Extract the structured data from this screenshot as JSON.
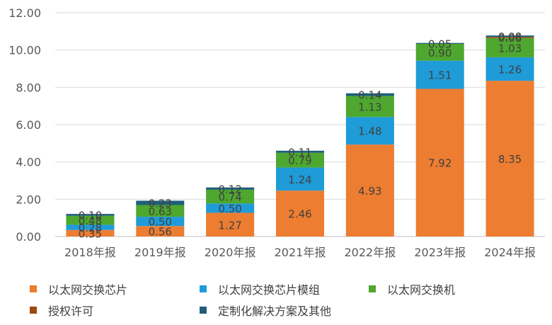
{
  "chart_data": {
    "type": "bar",
    "stacked": true,
    "categories": [
      "2018年报",
      "2019年报",
      "2020年报",
      "2021年报",
      "2022年报",
      "2023年报",
      "2024年报"
    ],
    "ylim": [
      0,
      12
    ],
    "yticks": [
      "0.00",
      "2.00",
      "4.00",
      "6.00",
      "8.00",
      "10.00",
      "12.00"
    ],
    "grid": true,
    "legend_position": "bottom",
    "series": [
      {
        "name": "以太网交换芯片",
        "color": "#ED7D31",
        "values": [
          0.35,
          0.56,
          1.27,
          2.46,
          4.93,
          7.92,
          8.35
        ]
      },
      {
        "name": "以太网交换芯片模组",
        "color": "#1F9BD8",
        "values": [
          0.28,
          0.5,
          0.5,
          1.24,
          1.48,
          1.51,
          1.26
        ]
      },
      {
        "name": "以太网交换机",
        "color": "#4EA72E",
        "values": [
          0.48,
          0.63,
          0.74,
          0.79,
          1.13,
          0.9,
          1.03
        ]
      },
      {
        "name": "授权许可",
        "color": "#9E480E",
        "values": [
          0.0,
          0.0,
          0.0,
          0.0,
          0.0,
          0.0,
          0.06
        ]
      },
      {
        "name": "定制化解决方案及其他",
        "color": "#1F5F7A",
        "values": [
          0.1,
          0.23,
          0.12,
          0.11,
          0.14,
          0.05,
          0.08
        ]
      }
    ]
  }
}
